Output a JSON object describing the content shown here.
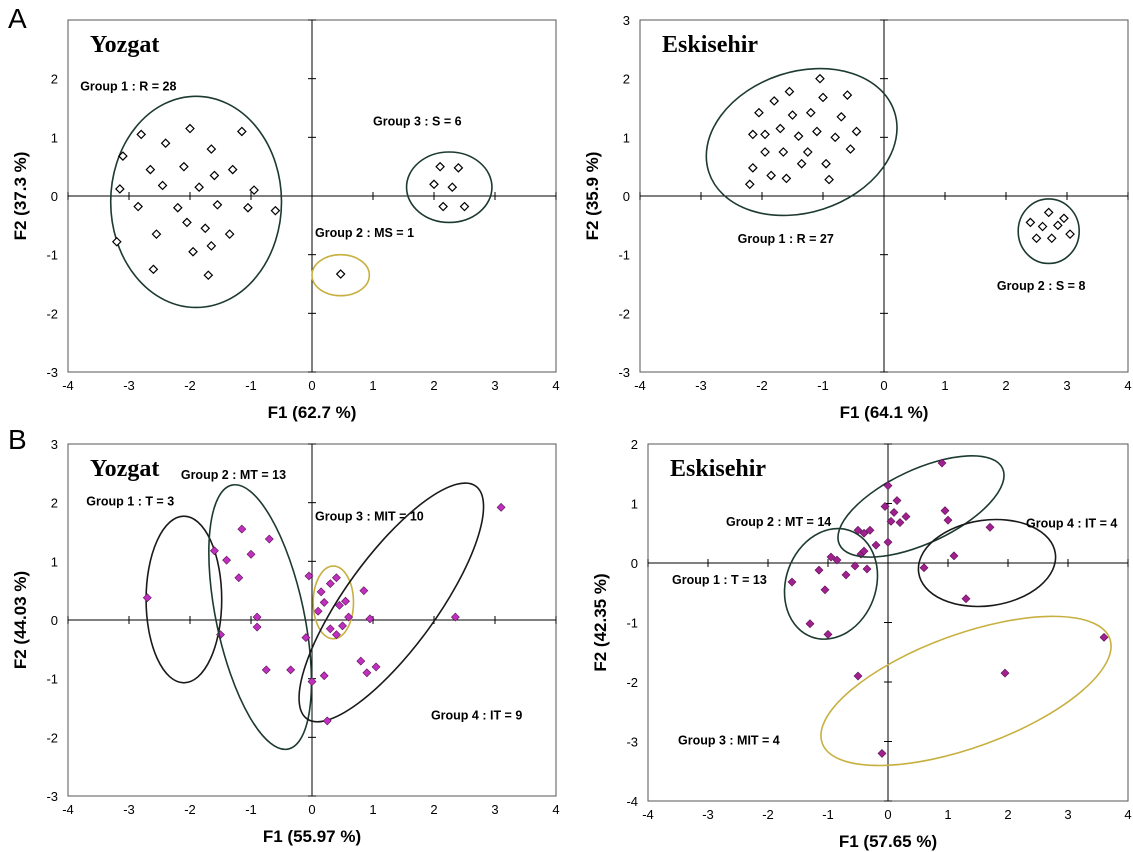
{
  "panel_labels": [
    "A",
    "B"
  ],
  "chart_data": [
    {
      "type": "scatter",
      "panel": "A",
      "title": "Yozgat",
      "xlabel": "F1 (62.7 %)",
      "ylabel": "F2 (37.3 %)",
      "xlim": [
        -4,
        4
      ],
      "ylim": [
        -3,
        3
      ],
      "xticks": [
        "-4",
        "-3",
        "-2",
        "-1",
        "0",
        "1",
        "2",
        "3",
        "4"
      ],
      "yticks": [
        "-3",
        "-2",
        "-1",
        "0",
        "1",
        "2",
        ""
      ],
      "marker": "open-diamond",
      "marker_color": "#000000",
      "groups": [
        {
          "label": "Group 1 : R = 28",
          "label_at": [
            -3.8,
            1.8
          ],
          "ellipse": {
            "cx": -1.9,
            "cy": -0.1,
            "rx": 1.4,
            "ry": 1.8,
            "angle": 0,
            "color": "#1c3a2e"
          },
          "points": [
            [
              -2.8,
              1.05
            ],
            [
              -3.1,
              0.68
            ],
            [
              -3.15,
              0.12
            ],
            [
              -2.85,
              -0.18
            ],
            [
              -3.2,
              -0.78
            ],
            [
              -2.55,
              -0.65
            ],
            [
              -2.45,
              0.18
            ],
            [
              -2.65,
              0.45
            ],
            [
              -2.4,
              0.9
            ],
            [
              -2.2,
              -0.2
            ],
            [
              -2.1,
              0.5
            ],
            [
              -2.05,
              -0.45
            ],
            [
              -2.0,
              1.15
            ],
            [
              -1.85,
              0.15
            ],
            [
              -1.95,
              -0.95
            ],
            [
              -1.75,
              -0.55
            ],
            [
              -1.65,
              0.8
            ],
            [
              -1.6,
              0.35
            ],
            [
              -1.55,
              -0.15
            ],
            [
              -1.35,
              -0.65
            ],
            [
              -1.3,
              0.45
            ],
            [
              -1.15,
              1.1
            ],
            [
              -1.05,
              -0.2
            ],
            [
              -0.95,
              0.1
            ],
            [
              -0.6,
              -0.25
            ],
            [
              -2.6,
              -1.25
            ],
            [
              -1.7,
              -1.35
            ],
            [
              -1.65,
              -0.85
            ]
          ]
        },
        {
          "label": "Group 2 : MS = 1",
          "label_at": [
            0.05,
            -0.7
          ],
          "ellipse": {
            "cx": 0.47,
            "cy": -1.35,
            "rx": 0.47,
            "ry": 0.35,
            "angle": 0,
            "color": "#c8b040"
          },
          "points": [
            [
              0.47,
              -1.33
            ]
          ]
        },
        {
          "label": "Group 3 : S = 6",
          "label_at": [
            1.0,
            1.2
          ],
          "ellipse": {
            "cx": 2.25,
            "cy": 0.15,
            "rx": 0.7,
            "ry": 0.6,
            "angle": 0,
            "color": "#1c3a2e"
          },
          "points": [
            [
              2.1,
              0.5
            ],
            [
              2.4,
              0.48
            ],
            [
              2.0,
              0.2
            ],
            [
              2.3,
              0.15
            ],
            [
              2.15,
              -0.18
            ],
            [
              2.5,
              -0.18
            ]
          ]
        }
      ]
    },
    {
      "type": "scatter",
      "panel": "A",
      "title": "Eskisehir",
      "xlabel": "F1 (64.1 %)",
      "ylabel": "F2 (35.9 %)",
      "xlim": [
        -4,
        4
      ],
      "ylim": [
        -3,
        3
      ],
      "xticks": [
        "-4",
        "-3",
        "-2",
        "-1",
        "0",
        "1",
        "2",
        "3",
        "4"
      ],
      "yticks": [
        "-3",
        "-2",
        "-1",
        "0",
        "1",
        "2",
        "3"
      ],
      "marker": "open-diamond",
      "marker_color": "#000000",
      "groups": [
        {
          "label": "Group 1 : R = 27",
          "label_at": [
            -2.4,
            -0.8
          ],
          "ellipse": {
            "cx": -1.35,
            "cy": 0.92,
            "rx": 1.6,
            "ry": 1.2,
            "angle": -18,
            "color": "#1c3a2e"
          },
          "points": [
            [
              -2.2,
              0.2
            ],
            [
              -2.15,
              0.48
            ],
            [
              -2.15,
              1.05
            ],
            [
              -2.05,
              1.42
            ],
            [
              -1.95,
              1.05
            ],
            [
              -1.95,
              0.75
            ],
            [
              -1.85,
              0.35
            ],
            [
              -1.8,
              1.62
            ],
            [
              -1.7,
              1.15
            ],
            [
              -1.65,
              0.75
            ],
            [
              -1.6,
              0.3
            ],
            [
              -1.55,
              1.78
            ],
            [
              -1.5,
              1.38
            ],
            [
              -1.4,
              1.02
            ],
            [
              -1.35,
              0.55
            ],
            [
              -1.25,
              0.75
            ],
            [
              -1.2,
              1.42
            ],
            [
              -1.1,
              1.1
            ],
            [
              -1.05,
              2.0
            ],
            [
              -1.0,
              1.68
            ],
            [
              -0.95,
              0.55
            ],
            [
              -0.9,
              0.28
            ],
            [
              -0.8,
              1.0
            ],
            [
              -0.7,
              1.35
            ],
            [
              -0.6,
              1.72
            ],
            [
              -0.55,
              0.8
            ],
            [
              -0.45,
              1.1
            ]
          ]
        },
        {
          "label": "Group 2 : S = 8",
          "label_at": [
            1.85,
            -1.6
          ],
          "ellipse": {
            "cx": 2.7,
            "cy": -0.6,
            "rx": 0.5,
            "ry": 0.55,
            "angle": 0,
            "color": "#1c3a2e"
          },
          "points": [
            [
              2.7,
              -0.28
            ],
            [
              2.95,
              -0.38
            ],
            [
              2.4,
              -0.45
            ],
            [
              2.6,
              -0.52
            ],
            [
              2.85,
              -0.5
            ],
            [
              3.05,
              -0.65
            ],
            [
              2.5,
              -0.72
            ],
            [
              2.75,
              -0.72
            ]
          ]
        }
      ]
    },
    {
      "type": "scatter",
      "panel": "B",
      "title": "Yozgat",
      "xlabel": "F1 (55.97 %)",
      "ylabel": "F2 (44.03 %)",
      "xlim": [
        -4,
        4
      ],
      "ylim": [
        -3,
        3
      ],
      "xticks": [
        "-4",
        "-3",
        "-2",
        "-1",
        "0",
        "1",
        "2",
        "3",
        "4"
      ],
      "yticks": [
        "-3",
        "-2",
        "-1",
        "0",
        "1",
        "2",
        "3"
      ],
      "marker": "filled-diamond",
      "marker_color": "#c030c0",
      "groups": [
        {
          "label": "Group 1 : T = 3",
          "label_at": [
            -3.7,
            1.95
          ],
          "ellipse": {
            "cx": -2.1,
            "cy": 0.35,
            "rx": 0.62,
            "ry": 1.42,
            "angle": 0,
            "color": "#1a1a1a"
          },
          "points": [
            [
              -2.7,
              0.38
            ],
            [
              -1.6,
              1.18
            ],
            [
              -1.5,
              -0.25
            ]
          ]
        },
        {
          "label": "Group 2 : MT = 13",
          "label_at": [
            -2.15,
            2.4
          ],
          "ellipse": {
            "cx": -0.85,
            "cy": 0.05,
            "rx": 0.72,
            "ry": 2.3,
            "angle": -12,
            "color": "#1c3a2e"
          },
          "points": [
            [
              -1.4,
              1.02
            ],
            [
              -1.2,
              0.72
            ],
            [
              -1.15,
              1.55
            ],
            [
              -1.0,
              1.12
            ],
            [
              -0.7,
              1.38
            ],
            [
              -0.9,
              0.05
            ],
            [
              -0.9,
              -0.12
            ],
            [
              -0.75,
              -0.85
            ],
            [
              -0.35,
              -0.85
            ],
            [
              -0.1,
              -0.3
            ],
            [
              0.0,
              -1.05
            ],
            [
              0.1,
              0.15
            ],
            [
              -0.05,
              0.75
            ]
          ]
        },
        {
          "label": "Group 3 : MIT = 10",
          "label_at": [
            0.05,
            1.7
          ],
          "ellipse": {
            "cx": 0.35,
            "cy": 0.3,
            "rx": 0.33,
            "ry": 0.62,
            "angle": 0,
            "color": "#c8b040"
          },
          "points": [
            [
              0.15,
              0.48
            ],
            [
              0.3,
              0.62
            ],
            [
              0.4,
              0.72
            ],
            [
              0.2,
              0.3
            ],
            [
              0.45,
              0.25
            ],
            [
              0.3,
              -0.15
            ],
            [
              0.5,
              -0.1
            ],
            [
              0.4,
              -0.25
            ],
            [
              0.6,
              0.05
            ],
            [
              0.55,
              0.32
            ]
          ]
        },
        {
          "label": "Group 4 : IT = 9",
          "label_at": [
            1.95,
            -1.7
          ],
          "ellipse": {
            "cx": 1.3,
            "cy": 0.3,
            "rx": 0.75,
            "ry": 2.45,
            "angle": 36,
            "color": "#1a1a1a"
          },
          "points": [
            [
              3.1,
              1.92
            ],
            [
              2.35,
              0.05
            ],
            [
              0.8,
              -0.7
            ],
            [
              0.9,
              -0.9
            ],
            [
              1.05,
              -0.8
            ],
            [
              0.85,
              0.5
            ],
            [
              0.95,
              0.02
            ],
            [
              0.2,
              -0.95
            ],
            [
              0.25,
              -1.72
            ]
          ]
        }
      ]
    },
    {
      "type": "scatter",
      "panel": "B",
      "title": "Eskisehir",
      "xlabel": "F1 (57.65 %)",
      "ylabel": "F2 (42.35 %)",
      "xlim": [
        -4,
        4
      ],
      "ylim": [
        -4,
        2
      ],
      "xticks": [
        "-4",
        "-3",
        "-2",
        "-1",
        "0",
        "1",
        "2",
        "3",
        "4"
      ],
      "yticks": [
        "-4",
        "-3",
        "-2",
        "-1",
        "0",
        "1",
        "2"
      ],
      "marker": "filled-diamond",
      "marker_color": "#a02090",
      "groups": [
        {
          "label": "Group 1 : T = 13",
          "label_at": [
            -3.6,
            -0.35
          ],
          "ellipse": {
            "cx": -0.95,
            "cy": -0.35,
            "rx": 0.75,
            "ry": 0.95,
            "angle": 20,
            "color": "#1c3a2e"
          },
          "points": [
            [
              -1.6,
              -0.32
            ],
            [
              -1.3,
              -1.02
            ],
            [
              -1.15,
              -0.12
            ],
            [
              -1.05,
              -0.45
            ],
            [
              -1.0,
              -1.2
            ],
            [
              -0.95,
              0.1
            ],
            [
              -0.85,
              0.05
            ],
            [
              -0.7,
              -0.2
            ],
            [
              -0.55,
              -0.05
            ],
            [
              -0.45,
              0.15
            ],
            [
              -0.4,
              0.2
            ],
            [
              -0.35,
              -0.1
            ],
            [
              -0.5,
              0.55
            ]
          ]
        },
        {
          "label": "Group 2 : MT = 14",
          "label_at": [
            -2.7,
            0.62
          ],
          "ellipse": {
            "cx": 0.55,
            "cy": 0.95,
            "rx": 1.5,
            "ry": 0.62,
            "angle": -25,
            "color": "#1c3a2e"
          },
          "points": [
            [
              0.0,
              1.3
            ],
            [
              -0.05,
              0.95
            ],
            [
              0.15,
              1.05
            ],
            [
              0.3,
              0.78
            ],
            [
              0.05,
              0.7
            ],
            [
              0.2,
              0.68
            ],
            [
              0.9,
              1.68
            ],
            [
              0.95,
              0.88
            ],
            [
              1.0,
              0.72
            ],
            [
              -0.4,
              0.5
            ],
            [
              -0.2,
              0.3
            ],
            [
              0.0,
              0.35
            ],
            [
              -0.3,
              0.55
            ],
            [
              0.1,
              0.85
            ]
          ]
        },
        {
          "label": "Group 3 : MIT = 4",
          "label_at": [
            -3.5,
            -3.05
          ],
          "ellipse": {
            "cx": 1.3,
            "cy": -2.15,
            "rx": 2.55,
            "ry": 0.95,
            "angle": -20,
            "color": "#c8b040"
          },
          "points": [
            [
              3.6,
              -1.25
            ],
            [
              1.95,
              -1.85
            ],
            [
              -0.5,
              -1.9
            ],
            [
              -0.1,
              -3.2
            ]
          ]
        },
        {
          "label": "Group 4 : IT = 4",
          "label_at": [
            2.3,
            0.6
          ],
          "ellipse": {
            "cx": 1.65,
            "cy": 0.0,
            "rx": 1.15,
            "ry": 0.72,
            "angle": -8,
            "color": "#1a1a1a"
          },
          "points": [
            [
              1.7,
              0.6
            ],
            [
              1.1,
              0.12
            ],
            [
              0.6,
              -0.08
            ],
            [
              1.3,
              -0.6
            ]
          ]
        }
      ]
    }
  ]
}
